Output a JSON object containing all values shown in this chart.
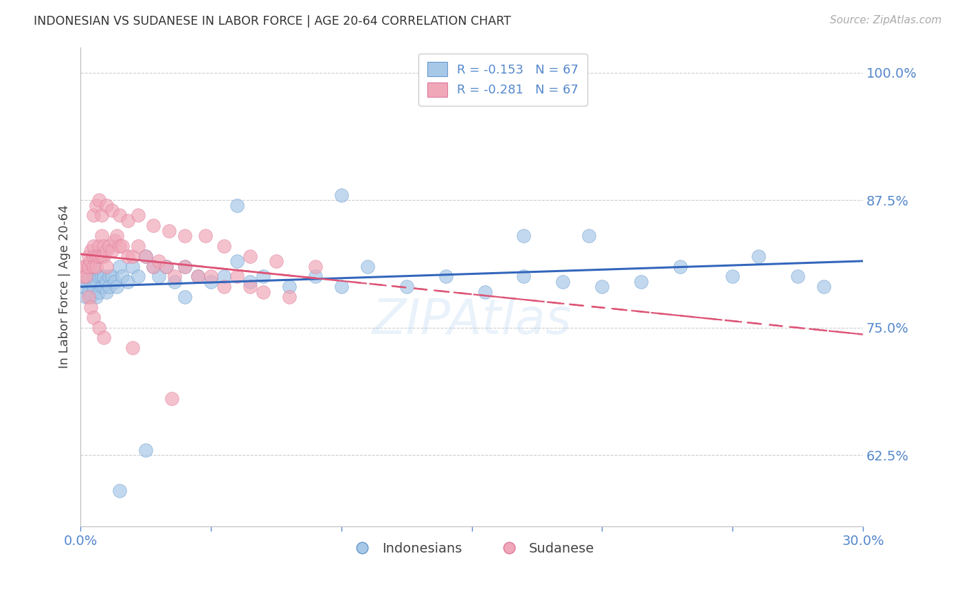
{
  "title": "INDONESIAN VS SUDANESE IN LABOR FORCE | AGE 20-64 CORRELATION CHART",
  "source_text": "Source: ZipAtlas.com",
  "ylabel": "In Labor Force | Age 20-64",
  "xlim": [
    0.0,
    0.3
  ],
  "ylim": [
    0.555,
    1.025
  ],
  "yticks": [
    0.625,
    0.75,
    0.875,
    1.0
  ],
  "ytick_labels": [
    "62.5%",
    "75.0%",
    "87.5%",
    "100.0%"
  ],
  "xticks": [
    0.0,
    0.05,
    0.1,
    0.15,
    0.2,
    0.25,
    0.3
  ],
  "xtick_labels": [
    "0.0%",
    "",
    "",
    "",
    "",
    "",
    "30.0%"
  ],
  "blue_color": "#a8c8e8",
  "blue_edge": "#6699cc",
  "pink_color": "#f0a8b8",
  "pink_edge": "#dd7799",
  "blue_line_color": "#3366bb",
  "pink_line_color": "#dd5577",
  "axis_color": "#5588cc",
  "indonesian_x": [
    0.001,
    0.001,
    0.002,
    0.002,
    0.003,
    0.003,
    0.003,
    0.004,
    0.004,
    0.005,
    0.005,
    0.005,
    0.006,
    0.006,
    0.007,
    0.007,
    0.008,
    0.008,
    0.009,
    0.009,
    0.01,
    0.01,
    0.011,
    0.011,
    0.012,
    0.013,
    0.014,
    0.015,
    0.016,
    0.018,
    0.02,
    0.022,
    0.025,
    0.028,
    0.03,
    0.033,
    0.036,
    0.04,
    0.045,
    0.05,
    0.055,
    0.06,
    0.065,
    0.07,
    0.08,
    0.09,
    0.1,
    0.11,
    0.125,
    0.14,
    0.155,
    0.17,
    0.185,
    0.2,
    0.215,
    0.23,
    0.25,
    0.26,
    0.275,
    0.285,
    0.17,
    0.195,
    0.06,
    0.1,
    0.015,
    0.025,
    0.04
  ],
  "indonesian_y": [
    0.8,
    0.79,
    0.795,
    0.78,
    0.8,
    0.785,
    0.81,
    0.795,
    0.78,
    0.8,
    0.79,
    0.81,
    0.795,
    0.78,
    0.8,
    0.785,
    0.8,
    0.79,
    0.8,
    0.79,
    0.795,
    0.785,
    0.8,
    0.79,
    0.8,
    0.795,
    0.79,
    0.81,
    0.8,
    0.795,
    0.81,
    0.8,
    0.82,
    0.81,
    0.8,
    0.81,
    0.795,
    0.81,
    0.8,
    0.795,
    0.8,
    0.815,
    0.795,
    0.8,
    0.79,
    0.8,
    0.79,
    0.81,
    0.79,
    0.8,
    0.785,
    0.8,
    0.795,
    0.79,
    0.795,
    0.81,
    0.8,
    0.82,
    0.8,
    0.79,
    0.84,
    0.84,
    0.87,
    0.88,
    0.59,
    0.63,
    0.78
  ],
  "sudanese_x": [
    0.001,
    0.001,
    0.002,
    0.002,
    0.003,
    0.003,
    0.004,
    0.004,
    0.005,
    0.005,
    0.005,
    0.006,
    0.006,
    0.007,
    0.007,
    0.008,
    0.008,
    0.009,
    0.009,
    0.01,
    0.01,
    0.011,
    0.012,
    0.013,
    0.014,
    0.015,
    0.016,
    0.018,
    0.02,
    0.022,
    0.025,
    0.028,
    0.03,
    0.033,
    0.036,
    0.04,
    0.045,
    0.05,
    0.055,
    0.06,
    0.065,
    0.07,
    0.08,
    0.005,
    0.006,
    0.007,
    0.008,
    0.01,
    0.012,
    0.015,
    0.018,
    0.022,
    0.028,
    0.034,
    0.04,
    0.048,
    0.055,
    0.065,
    0.075,
    0.09,
    0.003,
    0.004,
    0.005,
    0.007,
    0.009,
    0.02,
    0.035
  ],
  "sudanese_y": [
    0.8,
    0.81,
    0.81,
    0.8,
    0.82,
    0.81,
    0.815,
    0.825,
    0.82,
    0.81,
    0.83,
    0.82,
    0.81,
    0.83,
    0.82,
    0.84,
    0.82,
    0.83,
    0.82,
    0.825,
    0.81,
    0.83,
    0.825,
    0.835,
    0.84,
    0.83,
    0.83,
    0.82,
    0.82,
    0.83,
    0.82,
    0.81,
    0.815,
    0.81,
    0.8,
    0.81,
    0.8,
    0.8,
    0.79,
    0.8,
    0.79,
    0.785,
    0.78,
    0.86,
    0.87,
    0.875,
    0.86,
    0.87,
    0.865,
    0.86,
    0.855,
    0.86,
    0.85,
    0.845,
    0.84,
    0.84,
    0.83,
    0.82,
    0.815,
    0.81,
    0.78,
    0.77,
    0.76,
    0.75,
    0.74,
    0.73,
    0.68
  ]
}
